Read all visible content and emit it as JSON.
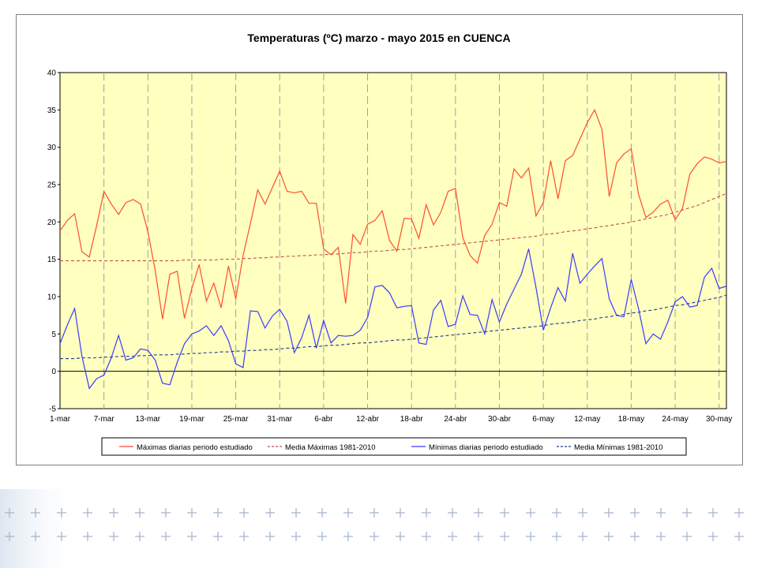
{
  "chart_data": {
    "type": "line",
    "title": "Temperaturas (ºC) marzo - mayo 2015 en CUENCA",
    "xlabel": "",
    "ylabel": "",
    "ylim": [
      -5,
      40
    ],
    "yticks": [
      -5,
      0,
      5,
      10,
      15,
      20,
      25,
      30,
      35,
      40
    ],
    "xlim": [
      0,
      91
    ],
    "xticks": [
      {
        "day": 0,
        "label": "1-mar"
      },
      {
        "day": 6,
        "label": "7-mar"
      },
      {
        "day": 12,
        "label": "13-mar"
      },
      {
        "day": 18,
        "label": "19-mar"
      },
      {
        "day": 24,
        "label": "25-mar"
      },
      {
        "day": 30,
        "label": "31-mar"
      },
      {
        "day": 36,
        "label": "6-abr"
      },
      {
        "day": 42,
        "label": "12-abr"
      },
      {
        "day": 48,
        "label": "18-abr"
      },
      {
        "day": 54,
        "label": "24-abr"
      },
      {
        "day": 60,
        "label": "30-abr"
      },
      {
        "day": 66,
        "label": "6-may"
      },
      {
        "day": 72,
        "label": "12-may"
      },
      {
        "day": 78,
        "label": "18-may"
      },
      {
        "day": 84,
        "label": "24-may"
      },
      {
        "day": 90,
        "label": "30-may"
      }
    ],
    "grid": "vertical dashed every 6 days",
    "plot_background": "#ffffc0",
    "legend_position": "bottom",
    "series": [
      {
        "name": "Máximas diarias periodo estudiado",
        "color": "#ff4d2e",
        "style": "solid",
        "values": [
          18.8,
          20.2,
          21.1,
          16.0,
          15.3,
          19.5,
          24.1,
          22.4,
          21.0,
          22.6,
          23.0,
          22.4,
          18.7,
          13.5,
          7.0,
          13.0,
          13.4,
          7.1,
          11.1,
          14.3,
          9.4,
          11.8,
          8.5,
          14.1,
          9.7,
          15.5,
          19.8,
          24.3,
          22.4,
          24.6,
          26.8,
          24.1,
          23.9,
          24.1,
          22.5,
          22.5,
          16.4,
          15.6,
          16.6,
          9.1,
          18.3,
          17.0,
          19.7,
          20.2,
          21.5,
          17.5,
          16.1,
          20.5,
          20.4,
          17.8,
          22.3,
          19.6,
          21.3,
          24.1,
          24.5,
          17.9,
          15.5,
          14.5,
          18.2,
          19.7,
          22.6,
          22.1,
          27.1,
          25.9,
          27.2,
          20.8,
          22.6,
          28.2,
          23.1,
          28.2,
          28.9,
          31.1,
          33.3,
          35.0,
          32.4,
          23.4,
          27.9,
          29.1,
          29.8,
          23.7,
          20.6,
          21.3,
          22.4,
          22.9,
          20.3,
          21.8,
          26.4,
          27.8,
          28.7,
          28.4,
          27.9,
          28.1
        ]
      },
      {
        "name": "Media Máximas 1981-2010",
        "color": "#c0504d",
        "style": "dashed",
        "values": [
          14.8,
          14.8,
          14.8,
          14.8,
          14.8,
          14.8,
          14.8,
          14.8,
          14.8,
          14.8,
          14.8,
          14.8,
          14.8,
          14.8,
          14.8,
          14.8,
          14.8,
          14.9,
          14.9,
          14.9,
          14.9,
          14.9,
          15.0,
          15.0,
          15.0,
          15.1,
          15.1,
          15.2,
          15.2,
          15.3,
          15.3,
          15.4,
          15.4,
          15.5,
          15.5,
          15.6,
          15.6,
          15.7,
          15.7,
          15.8,
          15.9,
          15.9,
          16.0,
          16.1,
          16.1,
          16.2,
          16.3,
          16.3,
          16.4,
          16.5,
          16.6,
          16.7,
          16.8,
          16.9,
          17.0,
          17.1,
          17.2,
          17.3,
          17.4,
          17.5,
          17.6,
          17.7,
          17.8,
          17.9,
          18.0,
          18.1,
          18.3,
          18.4,
          18.5,
          18.7,
          18.8,
          18.9,
          19.1,
          19.2,
          19.4,
          19.5,
          19.7,
          19.8,
          20.0,
          20.2,
          20.4,
          20.6,
          20.8,
          21.0,
          21.3,
          21.6,
          21.9,
          22.2,
          22.6,
          23.0,
          23.4,
          23.8
        ]
      },
      {
        "name": "Mínimas diarias periodo estudiado",
        "color": "#3b3bff",
        "style": "solid",
        "values": [
          3.7,
          6.2,
          8.4,
          2.0,
          -2.3,
          -1.0,
          -0.5,
          1.8,
          4.8,
          1.5,
          1.8,
          3.0,
          2.8,
          1.5,
          -1.6,
          -1.8,
          1.2,
          3.7,
          5.0,
          5.4,
          6.1,
          4.8,
          6.1,
          4.1,
          1.0,
          0.5,
          8.1,
          8.0,
          5.8,
          7.4,
          8.3,
          6.7,
          2.5,
          4.5,
          7.5,
          3.1,
          6.8,
          3.8,
          4.8,
          4.7,
          4.8,
          5.5,
          7.2,
          11.3,
          11.5,
          10.5,
          8.5,
          8.7,
          8.8,
          3.8,
          3.6,
          8.2,
          9.5,
          6.0,
          6.3,
          10.1,
          7.6,
          7.5,
          5.0,
          9.6,
          6.6,
          9.0,
          11.0,
          13.0,
          16.4,
          11.2,
          5.5,
          8.5,
          11.2,
          9.4,
          15.8,
          11.8,
          13.0,
          14.1,
          15.1,
          9.7,
          7.5,
          7.3,
          12.3,
          8.4,
          3.7,
          5.0,
          4.3,
          6.6,
          9.3,
          10.0,
          8.6,
          8.8,
          12.6,
          13.8,
          11.1,
          11.4
        ]
      },
      {
        "name": "Media Mínimas 1981-2010",
        "color": "#1f3d8a",
        "style": "dashed",
        "values": [
          1.7,
          1.7,
          1.7,
          1.8,
          1.8,
          1.8,
          1.9,
          1.9,
          2.0,
          2.0,
          2.0,
          2.1,
          2.1,
          2.2,
          2.2,
          2.2,
          2.3,
          2.3,
          2.4,
          2.4,
          2.5,
          2.5,
          2.6,
          2.6,
          2.7,
          2.7,
          2.8,
          2.8,
          2.9,
          2.9,
          3.0,
          3.1,
          3.1,
          3.2,
          3.3,
          3.3,
          3.4,
          3.5,
          3.5,
          3.6,
          3.7,
          3.8,
          3.8,
          3.9,
          4.0,
          4.1,
          4.2,
          4.2,
          4.3,
          4.4,
          4.5,
          4.6,
          4.7,
          4.8,
          4.9,
          5.0,
          5.1,
          5.2,
          5.3,
          5.4,
          5.5,
          5.6,
          5.7,
          5.8,
          5.9,
          6.0,
          6.1,
          6.3,
          6.4,
          6.5,
          6.6,
          6.8,
          6.9,
          7.0,
          7.2,
          7.3,
          7.5,
          7.6,
          7.8,
          7.9,
          8.1,
          8.2,
          8.4,
          8.6,
          8.8,
          8.9,
          9.1,
          9.3,
          9.5,
          9.7,
          9.9,
          10.2
        ]
      }
    ],
    "legend": [
      "Máximas diarias periodo estudiado",
      "Media Máximas 1981-2010",
      "Mínimas diarias periodo estudiado",
      "Media Mínimas 1981-2010"
    ]
  },
  "colors": {
    "plot_background": "#ffffc0",
    "grid": "#a0a0a0",
    "zero_line": "#000000",
    "decoration": "#a9b7cc"
  }
}
